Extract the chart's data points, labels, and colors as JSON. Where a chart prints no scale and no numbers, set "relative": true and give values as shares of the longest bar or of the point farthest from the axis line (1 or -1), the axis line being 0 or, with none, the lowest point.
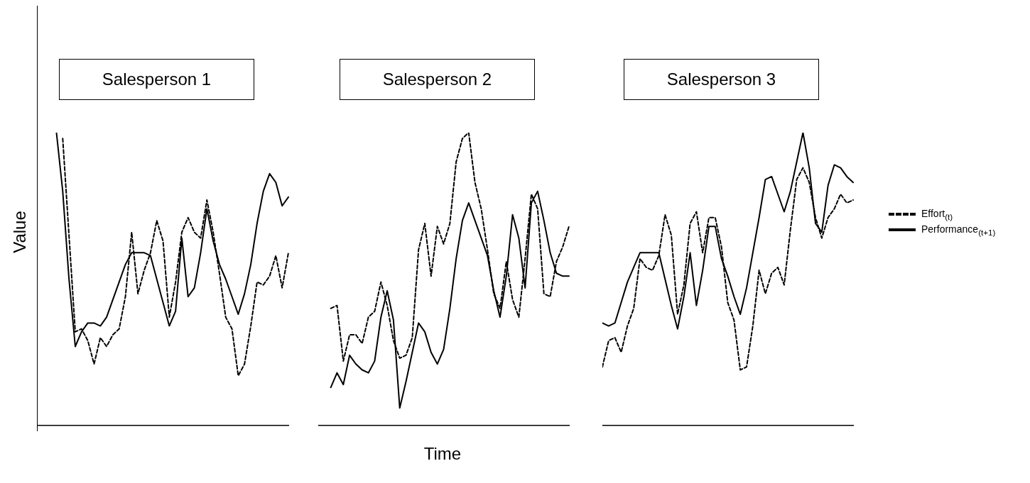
{
  "chart_data": [
    {
      "type": "line",
      "title": "Salesperson 1",
      "ylabel": "Value",
      "relative": true,
      "categories": [
        null,
        null,
        null,
        null,
        null,
        null,
        null,
        null,
        null,
        null,
        null,
        null,
        null,
        null,
        null,
        null,
        null,
        null,
        null,
        null,
        null,
        null,
        null,
        null,
        null,
        null,
        null,
        null,
        null,
        null,
        null,
        null,
        null,
        null,
        null,
        null,
        null,
        null,
        null,
        null,
        null
      ],
      "series": [
        {
          "color": "#000000",
          "line_style": "dashed",
          "values": [
            null,
            null,
            null,
            null,
            0.98,
            0.65,
            0.32,
            0.33,
            0.29,
            0.21,
            0.3,
            0.27,
            0.31,
            0.33,
            0.44,
            0.66,
            0.45,
            0.53,
            0.59,
            0.7,
            0.63,
            0.37,
            0.49,
            0.66,
            0.71,
            0.66,
            0.64,
            0.77,
            0.66,
            0.52,
            0.37,
            0.33,
            0.17,
            0.21,
            0.34,
            0.49,
            0.48,
            0.51,
            0.58,
            0.47,
            0.59
          ]
        },
        {
          "color": "#000000",
          "line_style": "solid",
          "values": [
            null,
            null,
            null,
            1.0,
            0.8,
            0.5,
            0.27,
            0.32,
            0.35,
            0.35,
            0.34,
            0.37,
            0.43,
            0.49,
            0.55,
            0.59,
            0.59,
            0.59,
            0.58,
            0.5,
            0.42,
            0.34,
            0.39,
            0.64,
            0.44,
            0.47,
            0.59,
            0.74,
            0.63,
            0.55,
            0.5,
            0.44,
            0.38,
            0.45,
            0.55,
            0.69,
            0.8,
            0.86,
            0.83,
            0.75,
            0.78
          ]
        }
      ]
    },
    {
      "type": "line",
      "title": "Salesperson 2",
      "xlabel": "Time",
      "relative": true,
      "categories": [
        null,
        null,
        null,
        null,
        null,
        null,
        null,
        null,
        null,
        null,
        null,
        null,
        null,
        null,
        null,
        null,
        null,
        null,
        null,
        null,
        null,
        null,
        null,
        null,
        null,
        null,
        null,
        null,
        null,
        null,
        null,
        null,
        null,
        null,
        null,
        null,
        null,
        null,
        null,
        null,
        null
      ],
      "series": [
        {
          "color": "#000000",
          "line_style": "dashed",
          "values": [
            null,
            null,
            0.4,
            0.41,
            0.22,
            0.31,
            0.31,
            0.28,
            0.37,
            0.39,
            0.49,
            0.41,
            0.29,
            0.23,
            0.24,
            0.3,
            0.6,
            0.69,
            0.51,
            0.68,
            0.62,
            0.69,
            0.9,
            0.98,
            1.0,
            0.83,
            0.74,
            0.6,
            0.45,
            0.4,
            0.56,
            0.43,
            0.37,
            0.57,
            0.79,
            0.74,
            0.45,
            0.44,
            0.56,
            0.61,
            0.68
          ]
        },
        {
          "color": "#000000",
          "line_style": "solid",
          "values": [
            null,
            null,
            0.13,
            0.18,
            0.14,
            0.24,
            0.21,
            0.19,
            0.18,
            0.22,
            0.37,
            0.46,
            0.36,
            0.06,
            0.15,
            0.25,
            0.35,
            0.32,
            0.25,
            0.21,
            0.26,
            0.4,
            0.57,
            0.7,
            0.76,
            0.7,
            0.64,
            0.58,
            0.46,
            0.37,
            0.51,
            0.72,
            0.64,
            0.47,
            0.76,
            0.8,
            0.7,
            0.59,
            0.52,
            0.51,
            0.51
          ]
        }
      ]
    },
    {
      "type": "line",
      "title": "Salesperson 3",
      "relative": true,
      "legend": "right",
      "categories": [
        null,
        null,
        null,
        null,
        null,
        null,
        null,
        null,
        null,
        null,
        null,
        null,
        null,
        null,
        null,
        null,
        null,
        null,
        null,
        null,
        null,
        null,
        null,
        null,
        null,
        null,
        null,
        null,
        null,
        null,
        null,
        null,
        null,
        null,
        null,
        null,
        null,
        null,
        null,
        null,
        null
      ],
      "series": [
        {
          "name": "Effort$_{(t)}$",
          "color": "#000000",
          "line_style": "dashed",
          "values": [
            0.2,
            0.29,
            0.3,
            0.25,
            0.34,
            0.4,
            0.57,
            0.54,
            0.53,
            0.58,
            0.72,
            0.65,
            0.38,
            0.48,
            0.69,
            0.73,
            0.59,
            0.71,
            0.71,
            0.61,
            0.42,
            0.36,
            0.19,
            0.2,
            0.34,
            0.53,
            0.45,
            0.52,
            0.54,
            0.48,
            0.67,
            0.84,
            0.88,
            0.83,
            0.71,
            0.64,
            0.71,
            0.74,
            0.79,
            0.76,
            0.77
          ]
        },
        {
          "name": "Performance$_{(t+1)}$",
          "color": "#000000",
          "line_style": "solid",
          "values": [
            0.35,
            0.34,
            0.35,
            0.42,
            0.49,
            0.54,
            0.59,
            0.59,
            0.59,
            0.59,
            0.5,
            0.41,
            0.33,
            0.44,
            0.59,
            0.41,
            0.53,
            0.68,
            0.68,
            0.57,
            0.51,
            0.44,
            0.38,
            0.47,
            0.59,
            0.71,
            0.84,
            0.85,
            0.79,
            0.73,
            0.8,
            0.9,
            1.0,
            0.88,
            0.69,
            0.66,
            0.82,
            0.89,
            0.88,
            0.85,
            0.83
          ]
        }
      ]
    }
  ]
}
